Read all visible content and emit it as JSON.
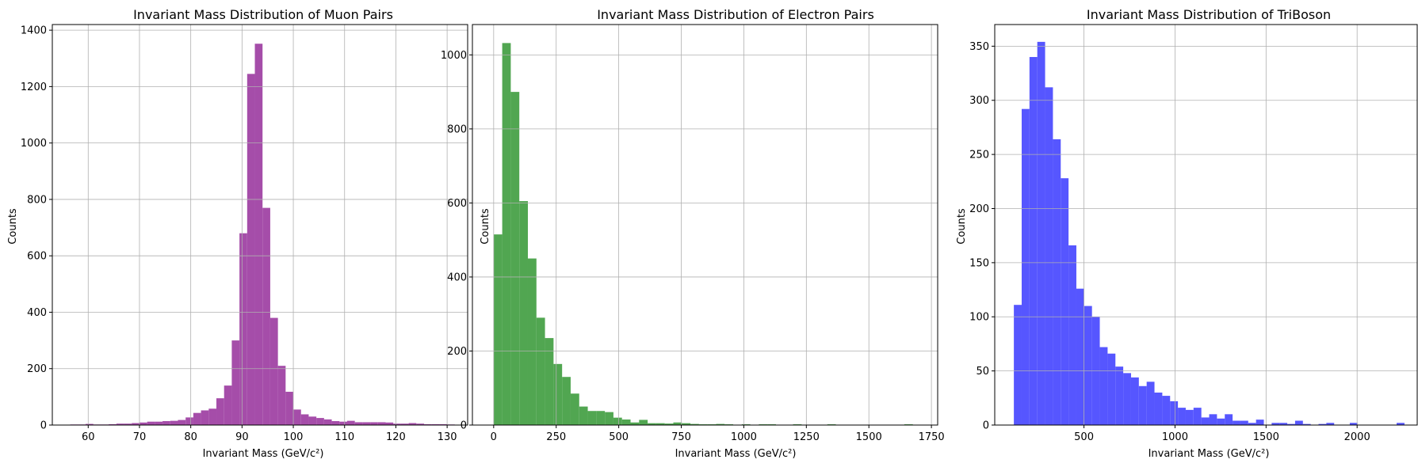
{
  "chart_data": [
    {
      "type": "bar",
      "title": "Invariant Mass Distribution of Muon Pairs",
      "xlabel": "Invariant Mass (GeV/c²)",
      "ylabel": "Counts",
      "xlim": [
        53,
        134
      ],
      "ylim": [
        0,
        1420
      ],
      "xticks": [
        60,
        70,
        80,
        90,
        100,
        110,
        120,
        130
      ],
      "yticks": [
        0,
        200,
        400,
        600,
        800,
        1000,
        1200,
        1400
      ],
      "grid": true,
      "color": "#9b3aa0",
      "bin_start": 56.5,
      "bin_width": 1.5,
      "values": [
        2,
        2,
        4,
        2,
        2,
        3,
        5,
        5,
        7,
        9,
        12,
        12,
        14,
        15,
        18,
        27,
        43,
        52,
        58,
        95,
        140,
        300,
        680,
        1245,
        1352,
        770,
        380,
        210,
        118,
        55,
        38,
        30,
        25,
        20,
        14,
        12,
        15,
        10,
        10,
        10,
        10,
        9,
        5,
        5,
        7,
        5,
        3,
        3,
        3,
        2
      ]
    },
    {
      "type": "bar",
      "title": "Invariant Mass Distribution of Electron Pairs",
      "xlabel": "Invariant Mass (GeV/c²)",
      "ylabel": "Counts",
      "xlim": [
        -85,
        1775
      ],
      "ylim": [
        0,
        1082
      ],
      "xticks": [
        0,
        250,
        500,
        750,
        1000,
        1250,
        1500,
        1750
      ],
      "yticks": [
        0,
        200,
        400,
        600,
        800,
        1000
      ],
      "grid": true,
      "color": "#3e9c3e",
      "bin_start": 0,
      "bin_width": 34.2,
      "values": [
        515,
        1032,
        900,
        605,
        450,
        290,
        235,
        165,
        130,
        85,
        50,
        38,
        38,
        35,
        20,
        15,
        7,
        14,
        5,
        5,
        4,
        7,
        5,
        3,
        2,
        2,
        3,
        2,
        1,
        2,
        1,
        2,
        2,
        1,
        1,
        2,
        1,
        0,
        1,
        2,
        1,
        0,
        0,
        1,
        0,
        1,
        0,
        1,
        2,
        1
      ]
    },
    {
      "type": "bar",
      "title": "Invariant Mass Distribution of TriBoson",
      "xlabel": "Invariant Mass (GeV/c²)",
      "ylabel": "Counts",
      "xlim": [
        10,
        2330
      ],
      "ylim": [
        0,
        370
      ],
      "xticks": [
        500,
        1000,
        1500,
        2000
      ],
      "yticks": [
        0,
        50,
        100,
        150,
        200,
        250,
        300,
        350
      ],
      "grid": true,
      "color": "#4444ff",
      "bin_start": 115,
      "bin_width": 42.9,
      "values": [
        111,
        292,
        340,
        354,
        312,
        264,
        228,
        166,
        126,
        110,
        100,
        72,
        66,
        54,
        48,
        44,
        36,
        40,
        30,
        27,
        22,
        16,
        14,
        16,
        7,
        10,
        6,
        10,
        4,
        4,
        2,
        5,
        0,
        2,
        2,
        1,
        4,
        1,
        0,
        1,
        2,
        0,
        0,
        2,
        0,
        0,
        0,
        0,
        0,
        2
      ]
    }
  ]
}
